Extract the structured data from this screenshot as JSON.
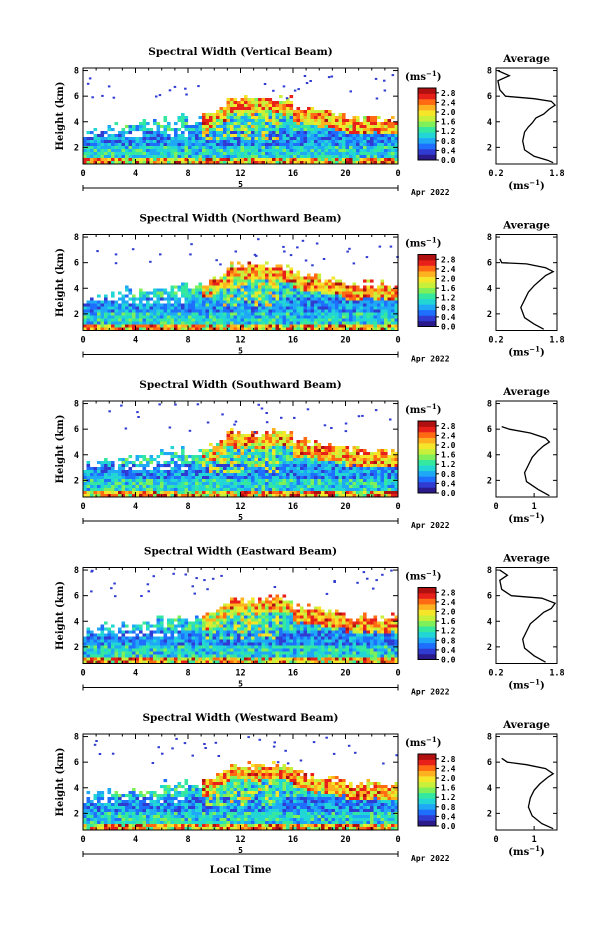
{
  "figure": {
    "x_axis_label": "Local Time",
    "date_label": "Apr 2022",
    "day_label": "5",
    "unit_label": "(ms",
    "unit_exponent": "−1",
    "unit_close": ")",
    "colors": {
      "scale": [
        "#2a1a8c",
        "#2f3bd1",
        "#1f6fff",
        "#1fa8f5",
        "#22d6d6",
        "#35e8a0",
        "#7ff05a",
        "#c8f03a",
        "#f5e62a",
        "#ffb21f",
        "#ff6a12",
        "#e8201a",
        "#b01010"
      ],
      "outline": "#000000"
    }
  },
  "chart_data": [
    {
      "type": "heatmap",
      "title": "Spectral Width (Vertical Beam)",
      "xlabel": "",
      "ylabel": "Height (km)",
      "x_ticks": [
        "0",
        "4",
        "8",
        "12",
        "16",
        "20",
        "0"
      ],
      "y_ticks": [
        "2",
        "4",
        "6",
        "8"
      ],
      "xlim": [
        0,
        24
      ],
      "ylim": [
        0.7,
        8.2
      ],
      "colorbar": {
        "ticks": [
          "0.0",
          "0.4",
          "0.8",
          "1.2",
          "1.6",
          "2.0",
          "2.4",
          "2.8"
        ],
        "range": [
          0,
          3.0
        ]
      },
      "profile": {
        "title": "Average",
        "xlabel": "(ms",
        "x_ticks": [
          "0.2",
          "1.8"
        ],
        "xlim": [
          0.2,
          1.8
        ],
        "y_ticks": [
          "2",
          "4",
          "6",
          "8"
        ],
        "ylim": [
          0.7,
          8.2
        ],
        "points": [
          [
            1.7,
            0.8
          ],
          [
            1.55,
            1.0
          ],
          [
            1.2,
            1.3
          ],
          [
            0.95,
            1.8
          ],
          [
            0.9,
            2.5
          ],
          [
            0.95,
            3.2
          ],
          [
            1.05,
            3.6
          ],
          [
            1.15,
            3.9
          ],
          [
            1.25,
            4.3
          ],
          [
            1.45,
            4.6
          ],
          [
            1.6,
            5.0
          ],
          [
            1.75,
            5.3
          ],
          [
            1.65,
            5.6
          ],
          [
            1.2,
            5.8
          ],
          [
            0.45,
            6.0
          ],
          [
            0.3,
            6.5
          ],
          [
            0.25,
            7.2
          ],
          [
            0.55,
            7.6
          ],
          [
            0.25,
            8.0
          ]
        ]
      }
    },
    {
      "type": "heatmap",
      "title": "Spectral Width (Northward Beam)",
      "xlabel": "",
      "ylabel": "Height (km)",
      "x_ticks": [
        "0",
        "4",
        "8",
        "12",
        "16",
        "20",
        "0"
      ],
      "y_ticks": [
        "2",
        "4",
        "6",
        "8"
      ],
      "xlim": [
        0,
        24
      ],
      "ylim": [
        0.7,
        8.2
      ],
      "colorbar": {
        "ticks": [
          "0.0",
          "0.4",
          "0.8",
          "1.2",
          "1.6",
          "2.0",
          "2.4",
          "2.8"
        ],
        "range": [
          0,
          3.0
        ]
      },
      "profile": {
        "title": "Average",
        "xlabel": "(ms",
        "x_ticks": [
          "0.2",
          "1.8"
        ],
        "xlim": [
          0.2,
          1.8
        ],
        "y_ticks": [
          "2",
          "4",
          "6",
          "8"
        ],
        "ylim": [
          0.7,
          8.2
        ],
        "points": [
          [
            1.45,
            0.8
          ],
          [
            1.2,
            1.2
          ],
          [
            0.95,
            1.7
          ],
          [
            0.85,
            2.5
          ],
          [
            0.95,
            3.1
          ],
          [
            1.05,
            3.7
          ],
          [
            1.2,
            4.2
          ],
          [
            1.35,
            4.6
          ],
          [
            1.5,
            5.0
          ],
          [
            1.7,
            5.3
          ],
          [
            1.5,
            5.6
          ],
          [
            1.0,
            5.9
          ],
          [
            0.35,
            6.0
          ],
          [
            0.3,
            6.3
          ]
        ]
      }
    },
    {
      "type": "heatmap",
      "title": "Spectral Width (Southward Beam)",
      "xlabel": "",
      "ylabel": "Height (km)",
      "x_ticks": [
        "0",
        "4",
        "8",
        "12",
        "16",
        "20",
        "0"
      ],
      "y_ticks": [
        "2",
        "4",
        "6",
        "8"
      ],
      "xlim": [
        0,
        24
      ],
      "ylim": [
        0.7,
        8.2
      ],
      "colorbar": {
        "ticks": [
          "0.0",
          "0.4",
          "0.8",
          "1.2",
          "1.6",
          "2.0",
          "2.4",
          "2.8"
        ],
        "range": [
          0,
          3.0
        ]
      },
      "profile": {
        "title": "Average",
        "xlabel": "(ms",
        "x_ticks": [
          "0",
          "1"
        ],
        "xlim": [
          0,
          1.6
        ],
        "y_ticks": [
          "2",
          "4",
          "6",
          "8"
        ],
        "ylim": [
          0.7,
          8.2
        ],
        "points": [
          [
            1.4,
            0.8
          ],
          [
            1.1,
            1.3
          ],
          [
            0.8,
            1.9
          ],
          [
            0.75,
            2.6
          ],
          [
            0.85,
            3.2
          ],
          [
            0.95,
            3.8
          ],
          [
            1.1,
            4.3
          ],
          [
            1.25,
            4.7
          ],
          [
            1.4,
            5.0
          ],
          [
            1.3,
            5.3
          ],
          [
            0.9,
            5.7
          ],
          [
            0.35,
            6.0
          ],
          [
            0.15,
            6.2
          ]
        ]
      }
    },
    {
      "type": "heatmap",
      "title": "Spectral Width (Eastward Beam)",
      "xlabel": "",
      "ylabel": "Height (km)",
      "x_ticks": [
        "0",
        "4",
        "8",
        "12",
        "16",
        "20",
        "0"
      ],
      "y_ticks": [
        "2",
        "4",
        "6",
        "8"
      ],
      "xlim": [
        0,
        24
      ],
      "ylim": [
        0.7,
        8.2
      ],
      "colorbar": {
        "ticks": [
          "0.0",
          "0.4",
          "0.8",
          "1.2",
          "1.6",
          "2.0",
          "2.4",
          "2.8"
        ],
        "range": [
          0,
          3.0
        ]
      },
      "profile": {
        "title": "Average",
        "xlabel": "(ms",
        "x_ticks": [
          "0.2",
          "1.8"
        ],
        "xlim": [
          0.2,
          1.8
        ],
        "y_ticks": [
          "2",
          "4",
          "6",
          "8"
        ],
        "ylim": [
          0.7,
          8.2
        ],
        "points": [
          [
            1.5,
            0.8
          ],
          [
            1.2,
            1.3
          ],
          [
            0.95,
            1.9
          ],
          [
            0.9,
            2.6
          ],
          [
            1.0,
            3.2
          ],
          [
            1.1,
            3.8
          ],
          [
            1.3,
            4.3
          ],
          [
            1.45,
            4.7
          ],
          [
            1.65,
            5.0
          ],
          [
            1.75,
            5.4
          ],
          [
            1.4,
            5.8
          ],
          [
            0.6,
            6.0
          ],
          [
            0.35,
            6.5
          ],
          [
            0.3,
            7.2
          ],
          [
            0.5,
            7.6
          ],
          [
            0.3,
            8.0
          ]
        ]
      }
    },
    {
      "type": "heatmap",
      "title": "Spectral Width (Westward Beam)",
      "xlabel": "Local Time",
      "ylabel": "Height (km)",
      "x_ticks": [
        "0",
        "4",
        "8",
        "12",
        "16",
        "20",
        "0"
      ],
      "y_ticks": [
        "2",
        "4",
        "6",
        "8"
      ],
      "xlim": [
        0,
        24
      ],
      "ylim": [
        0.7,
        8.2
      ],
      "colorbar": {
        "ticks": [
          "0.0",
          "0.4",
          "0.8",
          "1.2",
          "1.6",
          "2.0",
          "2.4",
          "2.8"
        ],
        "range": [
          0,
          3.0
        ]
      },
      "profile": {
        "title": "Average",
        "xlabel": "(ms",
        "x_ticks": [
          "0",
          "1"
        ],
        "xlim": [
          0,
          1.6
        ],
        "y_ticks": [
          "2",
          "4",
          "6",
          "8"
        ],
        "ylim": [
          0.7,
          8.2
        ],
        "points": [
          [
            1.5,
            0.8
          ],
          [
            1.2,
            1.2
          ],
          [
            0.95,
            1.8
          ],
          [
            0.85,
            2.5
          ],
          [
            0.9,
            3.2
          ],
          [
            1.0,
            3.8
          ],
          [
            1.15,
            4.3
          ],
          [
            1.35,
            4.8
          ],
          [
            1.5,
            5.1
          ],
          [
            1.3,
            5.5
          ],
          [
            0.8,
            5.8
          ],
          [
            0.3,
            6.0
          ],
          [
            0.15,
            6.3
          ]
        ]
      }
    }
  ]
}
